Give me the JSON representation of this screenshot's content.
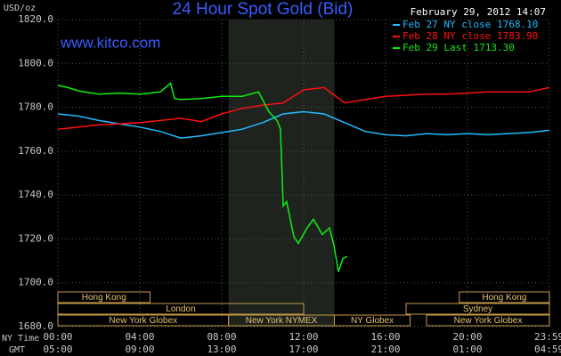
{
  "chart_data": {
    "type": "line",
    "title": "24 Hour Spot Gold (Bid)",
    "timestamp": "February 29, 2012 14:07",
    "watermark": "www.kitco.com",
    "y_label": "USD/oz",
    "x_label": "NY Time",
    "x2_label": "GMT",
    "ylim": [
      1680,
      1820
    ],
    "yticks": [
      {
        "value": 1680,
        "label": "1680.0"
      },
      {
        "value": 1700,
        "label": "1700.0"
      },
      {
        "value": 1720,
        "label": "1720.0"
      },
      {
        "value": 1740,
        "label": "1740.0"
      },
      {
        "value": 1760,
        "label": "1760.0"
      },
      {
        "value": 1780,
        "label": "1780.0"
      },
      {
        "value": 1800,
        "label": "1800.0"
      },
      {
        "value": 1820,
        "label": "1820.0"
      }
    ],
    "xlim": [
      0,
      24
    ],
    "xticks": [
      {
        "value": 0,
        "label": "00:00"
      },
      {
        "value": 4,
        "label": "04:00"
      },
      {
        "value": 8,
        "label": "08:00"
      },
      {
        "value": 12,
        "label": "12:00"
      },
      {
        "value": 16,
        "label": "16:00"
      },
      {
        "value": 20,
        "label": "20:00"
      },
      {
        "value": 23.983,
        "label": "23:59"
      }
    ],
    "xticks_gmt": [
      {
        "value": 0,
        "label": "05:00"
      },
      {
        "value": 4,
        "label": "09:00"
      },
      {
        "value": 8,
        "label": "13:00"
      },
      {
        "value": 12,
        "label": "17:00"
      },
      {
        "value": 16,
        "label": "21:00"
      },
      {
        "value": 20,
        "label": "01:00"
      },
      {
        "value": 23.983,
        "label": "04:59"
      }
    ],
    "grid": true,
    "shaded_span": [
      8.33,
      13.5
    ],
    "sessions": [
      [
        {
          "label": "Hong Kong",
          "start": 0,
          "end": 4.5
        },
        {
          "label": "Hong Kong",
          "start": 19.6,
          "end": 24
        }
      ],
      [
        {
          "label": "London",
          "start": 0,
          "end": 12.0
        },
        {
          "label": "Sydney",
          "start": 17.0,
          "end": 24
        }
      ],
      [
        {
          "label": "New York Globex",
          "start": 0,
          "end": 8.33
        },
        {
          "label": "New York NYMEX",
          "start": 8.33,
          "end": 13.5
        },
        {
          "label": "NY Globex",
          "start": 13.5,
          "end": 17.2
        },
        {
          "label": "New York Globex",
          "start": 18.0,
          "end": 24
        }
      ]
    ],
    "series": [
      {
        "name": "Feb 27 NY close 1768.10",
        "color": "#22bbff",
        "x": [
          0,
          1,
          2,
          3,
          4,
          5,
          6,
          7,
          8,
          9,
          10,
          11,
          12,
          13,
          14,
          15,
          16,
          17,
          18,
          19,
          20,
          21,
          22,
          23,
          24
        ],
        "values": [
          1777,
          1776,
          1774,
          1772.5,
          1771,
          1769,
          1766,
          1767,
          1768.5,
          1770,
          1773,
          1777,
          1778,
          1777,
          1773,
          1769,
          1767.5,
          1767,
          1768,
          1767.5,
          1768,
          1767.5,
          1768,
          1768.5,
          1769.5
        ]
      },
      {
        "name": "Feb 28 NY close 1783.90",
        "color": "#ff1010",
        "x": [
          0,
          1,
          2,
          3,
          4,
          5,
          6,
          7,
          8,
          9,
          10,
          11,
          12,
          13,
          14,
          15,
          16,
          17,
          18,
          19,
          20,
          21,
          22,
          23,
          24
        ],
        "values": [
          1770,
          1771,
          1772,
          1772.5,
          1773,
          1774,
          1775,
          1773.5,
          1777,
          1779.5,
          1781,
          1782,
          1788,
          1789,
          1782,
          1783.5,
          1785,
          1785.5,
          1786,
          1786,
          1786.5,
          1787,
          1787,
          1787,
          1789
        ]
      },
      {
        "name": "Feb 29 Last 1713.30",
        "color": "#10ee10",
        "x": [
          0,
          0.5,
          1,
          2,
          3,
          4,
          5,
          5.5,
          5.7,
          6,
          7,
          8,
          9,
          9.8,
          10.3,
          10.7,
          10.87,
          11,
          11.17,
          11.52,
          11.74,
          12.17,
          12.48,
          12.91,
          13.26,
          13.48,
          13.7,
          13.91,
          14.13
        ],
        "values": [
          1790,
          1789,
          1787.5,
          1786,
          1786.5,
          1786,
          1787,
          1791,
          1784,
          1783.5,
          1784,
          1785,
          1785,
          1787,
          1778,
          1774,
          1770,
          1735,
          1737,
          1721,
          1718,
          1725,
          1729,
          1722,
          1725,
          1717,
          1705,
          1711,
          1712
        ]
      }
    ]
  }
}
